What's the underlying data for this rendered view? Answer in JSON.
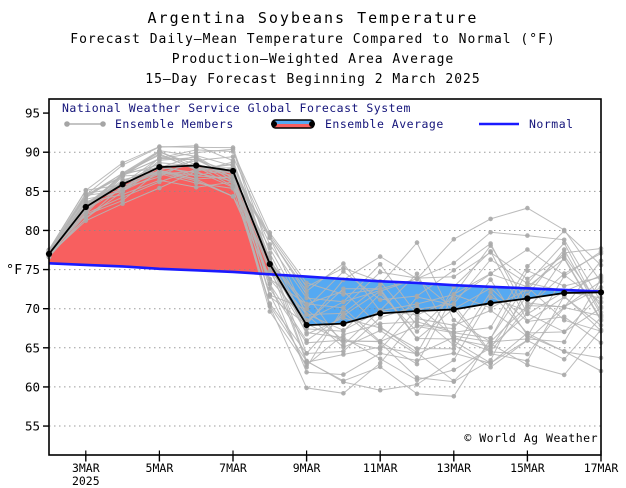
{
  "window": {
    "title": "Argentina Soybeans Temperature forecast chart"
  },
  "title": {
    "line1": "Argentina Soybeans Temperature",
    "line2": "Forecast Daily–Mean Temperature Compared to Normal (°F)",
    "line3": "Production–Weighted Area Average",
    "line4": "15–Day Forecast Beginning 2 March 2025"
  },
  "legend": {
    "header": "National Weather Service Global Forecast System",
    "members_label": "Ensemble Members",
    "average_label": "Ensemble Average",
    "normal_label": "Normal"
  },
  "copyright": "© World Ag Weather",
  "axes": {
    "y_label": "°F",
    "y_ticks": [
      55,
      60,
      65,
      70,
      75,
      80,
      85,
      90,
      95
    ],
    "y_grid_ticks": [
      55,
      60,
      65,
      70,
      75,
      80,
      85,
      90
    ],
    "x_ticks": [
      {
        "day": 3,
        "label": "3MAR",
        "sublabel": "2025"
      },
      {
        "day": 5,
        "label": "5MAR"
      },
      {
        "day": 7,
        "label": "7MAR"
      },
      {
        "day": 9,
        "label": "9MAR"
      },
      {
        "day": 11,
        "label": "11MAR"
      },
      {
        "day": 13,
        "label": "13MAR"
      },
      {
        "day": 15,
        "label": "15MAR"
      },
      {
        "day": 17,
        "label": "17MAR"
      }
    ]
  },
  "colors": {
    "ensemble_member": "#b5b5b5",
    "member_dot": "#a9a9a9",
    "ensemble_average": "#000000",
    "normal": "#1a1aff",
    "warm_fill": "#f85f5f",
    "cool_fill": "#55a9f2",
    "legend_text": "#14147a",
    "grid": "#8a8a8a",
    "axis": "#000000"
  },
  "chart_data": {
    "type": "line",
    "title": "Argentina Soybeans Temperature",
    "x_unit": "day of March 2025",
    "x": [
      2,
      3,
      4,
      5,
      6,
      7,
      8,
      9,
      10,
      11,
      12,
      13,
      14,
      15,
      16,
      17
    ],
    "xlim": [
      2,
      17
    ],
    "ylim": [
      51.3,
      96.8
    ],
    "ylabel": "°F",
    "grid": "horizontal dotted",
    "legend_position": "top-left inside plot",
    "series": [
      {
        "name": "Ensemble Average",
        "color_role": "ensemble_average",
        "values": [
          77.0,
          83.0,
          85.9,
          88.1,
          88.3,
          87.6,
          75.7,
          67.9,
          68.1,
          69.4,
          69.7,
          69.9,
          70.7,
          71.3,
          72.0,
          72.1
        ]
      },
      {
        "name": "Normal",
        "color_role": "normal",
        "values": [
          75.8,
          75.6,
          75.4,
          75.1,
          74.9,
          74.7,
          74.4,
          74.1,
          73.8,
          73.5,
          73.3,
          73.0,
          72.8,
          72.6,
          72.4,
          72.2
        ]
      }
    ],
    "fills": [
      {
        "name": "above-normal",
        "between": [
          "Ensemble Average",
          "Normal"
        ],
        "when": "average above normal",
        "color_role": "warm_fill"
      },
      {
        "name": "below-normal",
        "between": [
          "Ensemble Average",
          "Normal"
        ],
        "when": "average below normal",
        "color_role": "cool_fill"
      }
    ],
    "ensemble_members": {
      "count": 30,
      "style": "gray lines with dot markers each day",
      "approx_half_spread": [
        0.9,
        2.6,
        2.7,
        2.8,
        3.0,
        3.4,
        7.5,
        8.5,
        9.0,
        9.5,
        10.5,
        11.5,
        11.5,
        11.0,
        10.5,
        10.0
      ]
    }
  }
}
